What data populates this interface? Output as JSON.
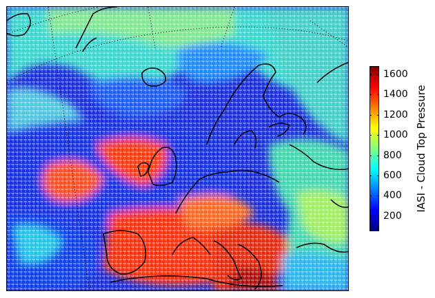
{
  "colorbar": {
    "label": "IASI - Cloud Top Pressure",
    "ticks": [
      "200",
      "400",
      "600",
      "800",
      "1000",
      "1200",
      "1400",
      "1600"
    ],
    "range": [
      50,
      1680
    ],
    "colormap": [
      "#00007f",
      "#0000ff",
      "#007fff",
      "#00ffff",
      "#7fff7f",
      "#ffff00",
      "#ff7f00",
      "#ff0000",
      "#7f0000"
    ]
  },
  "map": {
    "projection": "polar-stereographic",
    "region": "North Atlantic and Europe",
    "graticule": "dotted",
    "land_outline_color": "#000000"
  }
}
